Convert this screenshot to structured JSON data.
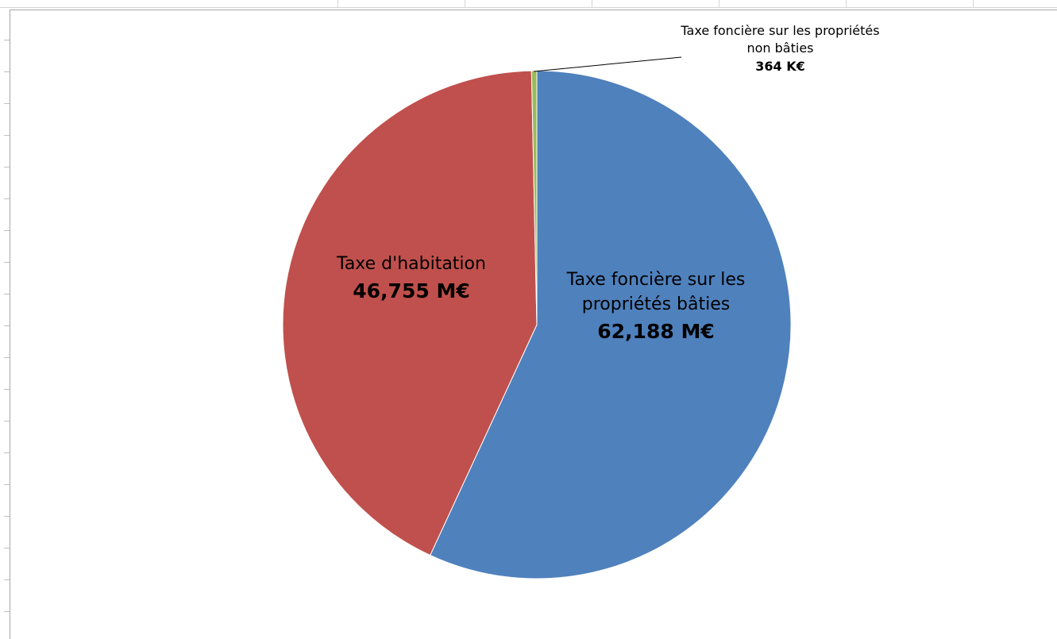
{
  "chart_data": {
    "type": "pie",
    "categories": [
      "Taxe foncière sur les propriétés bâties",
      "Taxe d'habitation",
      "Taxe foncière sur les propriétés non bâties"
    ],
    "values": [
      62.188,
      46.755,
      0.364
    ],
    "value_labels": [
      "62,188 M€",
      "46,755 M€",
      "364 K€"
    ],
    "colors": [
      "#4f81bd",
      "#c0504d",
      "#9bbb59"
    ]
  }
}
